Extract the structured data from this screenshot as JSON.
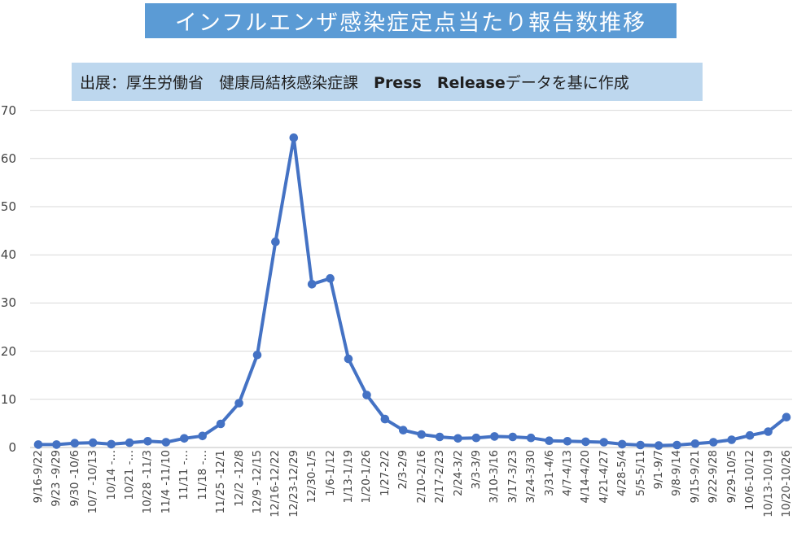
{
  "title": "インフルエンザ感染症定点当たり報告数推移",
  "source_note": {
    "prefix": "出展：厚生労働省　健康局結核感染症課　",
    "emphasis": "Press　Release",
    "suffix": "データを基に作成"
  },
  "colors": {
    "title_banner_bg": "#5B9BD5",
    "title_text": "#FFFFFF",
    "source_banner_bg": "#BDD7EE",
    "line": "#4472C4",
    "gridline": "#D9D9D9",
    "axis_line": "#BFBFBF",
    "axis_label": "#454545"
  },
  "chart_data": {
    "type": "line",
    "title": "インフルエンザ感染症定点当たり報告数推移",
    "xlabel": "",
    "ylabel": "",
    "ylim": [
      0,
      70
    ],
    "yticks": [
      0,
      10,
      20,
      30,
      40,
      50,
      60,
      70
    ],
    "grid": true,
    "legend": "none",
    "marker": "circle",
    "categories": [
      "9/16-9/22",
      "9/23 -9/29",
      "9/30 -10/6",
      "10/7 -10/13",
      "10/14 -…",
      "10/21 -…",
      "10/28 -11/3",
      "11/4 -11/10",
      "11/11 -…",
      "11/18 -…",
      "11/25 -12/1",
      "12/2 -12/8",
      "12/9 -12/15",
      "12/16-12/22",
      "12/23-12/29",
      "12/30-1/5",
      "1/6-1/12",
      "1/13-1/19",
      "1/20-1/26",
      "1/27-2/2",
      "2/3-2/9",
      "2/10-2/16",
      "2/17-2/23",
      "2/24-3/2",
      "3/3-3/9",
      "3/10-3/16",
      "3/17-3/23",
      "3/24-3/30",
      "3/31-4/6",
      "4/7-4/13",
      "4/14-4/20",
      "4/21-4/27",
      "4/28-5/4",
      "5/5-5/11",
      "9/1-9/7",
      "9/8-9/14",
      "9/15-9/21",
      "9/22-9/28",
      "9/29-10/5",
      "10/6-10/12",
      "10/13-10/19",
      "10/20-10/26"
    ],
    "values": [
      0.6,
      0.6,
      0.9,
      1.0,
      0.7,
      1.0,
      1.3,
      1.1,
      1.9,
      2.4,
      4.9,
      9.2,
      19.2,
      42.7,
      64.3,
      33.9,
      35.1,
      18.4,
      10.9,
      5.9,
      3.6,
      2.7,
      2.2,
      1.9,
      2.0,
      2.3,
      2.2,
      2.0,
      1.4,
      1.3,
      1.2,
      1.1,
      0.7,
      0.5,
      0.4,
      0.5,
      0.8,
      1.1,
      1.6,
      2.5,
      3.3,
      6.3
    ]
  }
}
